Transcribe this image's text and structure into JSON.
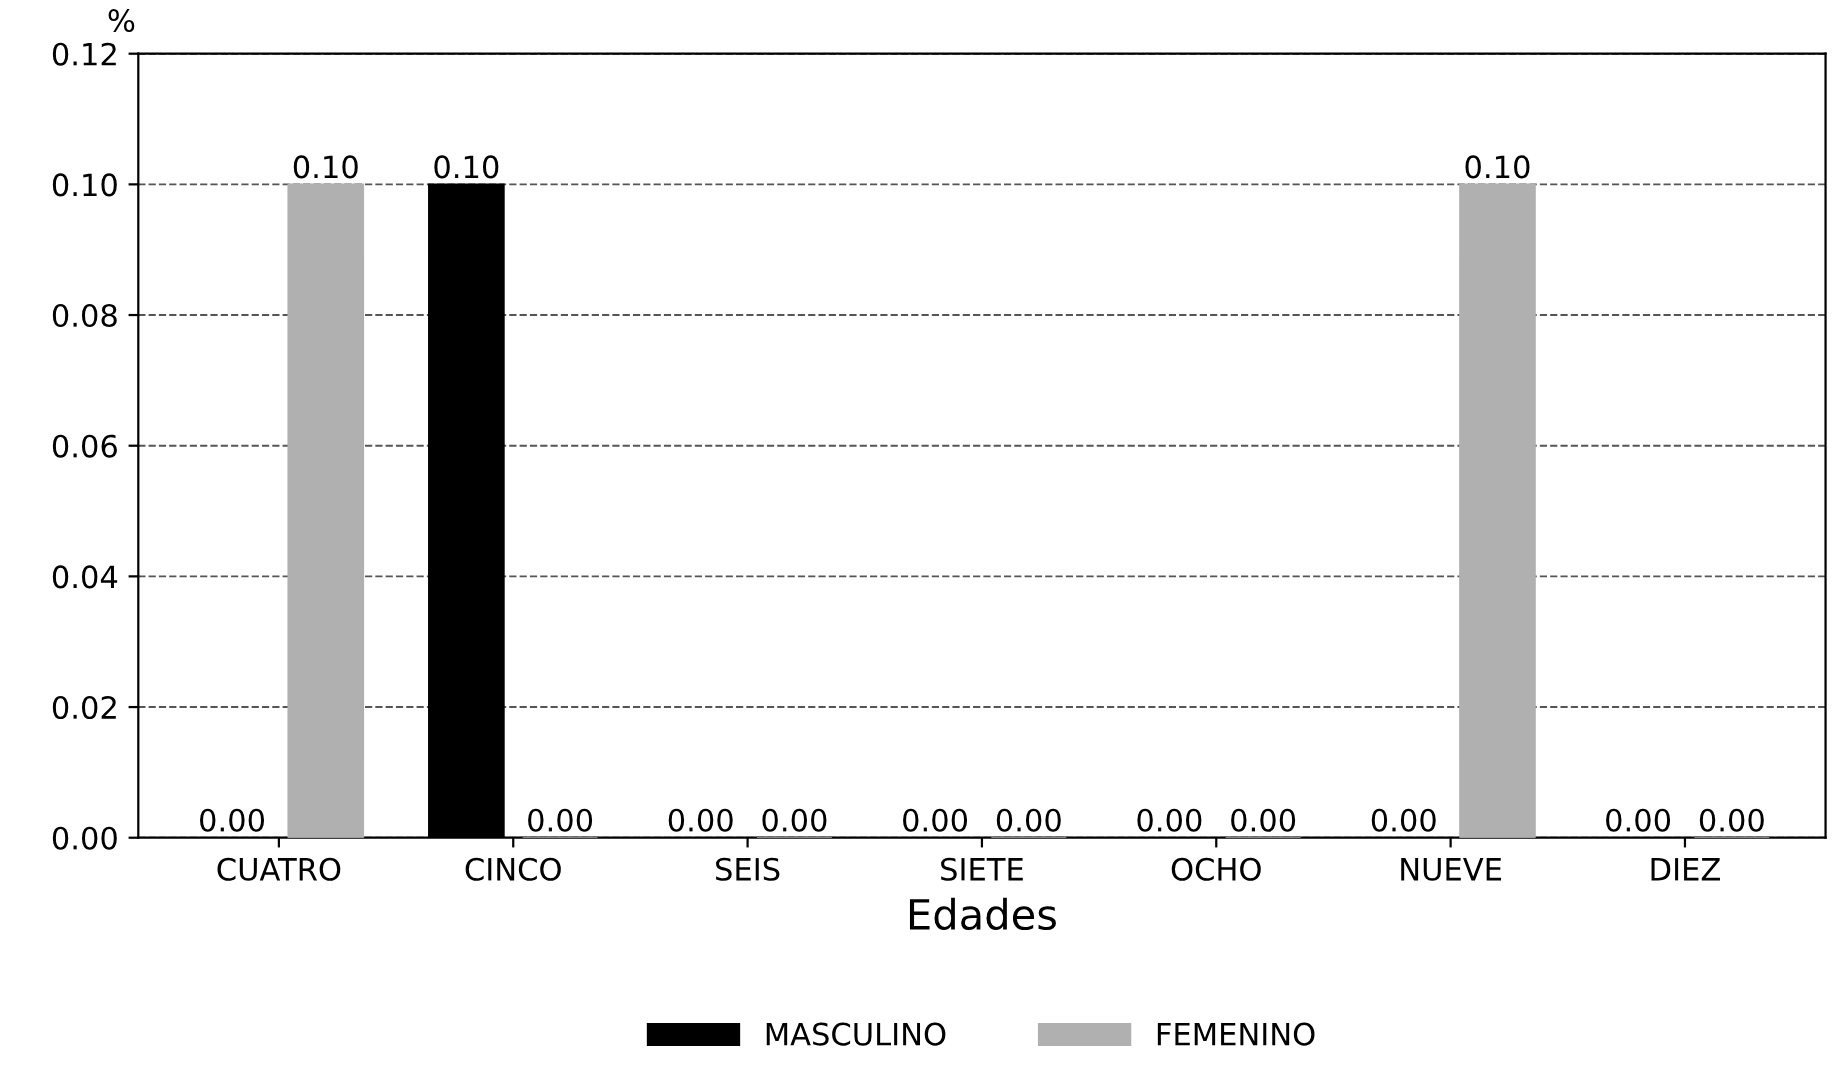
{
  "chart_data": {
    "type": "bar",
    "xlabel": "Edades",
    "ylabel": "%",
    "categories": [
      "CUATRO",
      "CINCO",
      "SEIS",
      "SIETE",
      "OCHO",
      "NUEVE",
      "DIEZ"
    ],
    "series": [
      {
        "name": "MASCULINO",
        "color": "#000000",
        "values": [
          0,
          0.1,
          0,
          0,
          0,
          0,
          0
        ],
        "value_labels": [
          "0.00",
          "0.10",
          "0.00",
          "0.00",
          "0.00",
          "0.00",
          "0.00"
        ]
      },
      {
        "name": "FEMENINO",
        "color": "#b0b0b0",
        "values": [
          0.1,
          0,
          0,
          0,
          0,
          0.1,
          0
        ],
        "value_labels": [
          "0.10",
          "0.00",
          "0.00",
          "0.00",
          "0.00",
          "0.10",
          "0.00"
        ]
      }
    ],
    "ylim": [
      0,
      0.12
    ],
    "yticks": [
      {
        "value": 0,
        "label": "0.00"
      },
      {
        "value": 0.02,
        "label": "0.02"
      },
      {
        "value": 0.04,
        "label": "0.04"
      },
      {
        "value": 0.06,
        "label": "0.06"
      },
      {
        "value": 0.08,
        "label": "0.08"
      },
      {
        "value": 0.1,
        "label": "0.10"
      },
      {
        "value": 0.12,
        "label": "0.12"
      }
    ],
    "grid": "y",
    "legend": "bottom"
  }
}
